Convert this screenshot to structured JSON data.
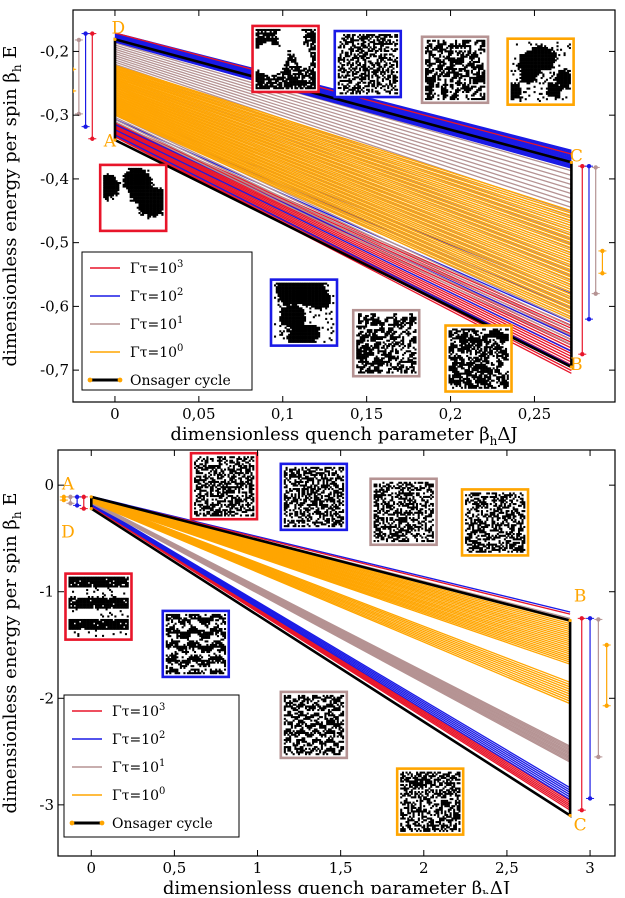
{
  "colors": {
    "red": "#e8152a",
    "blue": "#1a1ae6",
    "mauve": "#b59393",
    "orange": "#ffa500",
    "black": "#000000",
    "light_blue": "#8a8aff",
    "light_red": "#f08080"
  },
  "chart_data": [
    {
      "type": "line",
      "xlabel": "dimensionless quench parameter β",
      "xlabel_sub": "h",
      "xlabel_tail": "ΔJ",
      "ylabel": "dimensionless energy per spin β",
      "ylabel_sub": "h",
      "ylabel_tail": " E",
      "xlim": [
        -0.025,
        0.298
      ],
      "ylim": [
        -0.75,
        -0.135
      ],
      "x_ticks": [
        0,
        0.05,
        0.1,
        0.15,
        0.2,
        0.25
      ],
      "x_tick_labels": [
        "0",
        "0,05",
        "0,1",
        "0,15",
        "0,2",
        "0,25"
      ],
      "y_ticks": [
        -0.2,
        -0.3,
        -0.4,
        -0.5,
        -0.6,
        -0.7
      ],
      "y_tick_labels": [
        "-0,2",
        "-0,3",
        "-0,4",
        "-0,5",
        "-0,6",
        "-0,7"
      ],
      "x_end": 0.272,
      "corner_labels": [
        {
          "label": "A",
          "x": -0.003,
          "y": -0.342
        },
        {
          "label": "B",
          "x": 0.275,
          "y": -0.693
        },
        {
          "label": "C",
          "x": 0.275,
          "y": -0.366
        },
        {
          "label": "D",
          "x": 0.002,
          "y": -0.165
        }
      ],
      "bands": [
        {
          "series": "Γτ=10^3",
          "color": "red",
          "start": [
            -0.334,
            -0.312
          ],
          "end": [
            -0.705,
            -0.63
          ],
          "count": 18
        },
        {
          "series": "Γτ=10^2",
          "color": "blue",
          "start": [
            -0.331,
            -0.29
          ],
          "end": [
            -0.693,
            -0.58
          ],
          "count": 6
        },
        {
          "series": "Γτ=10^1",
          "color": "mauve",
          "start": [
            -0.31,
            -0.18
          ],
          "end": [
            -0.66,
            -0.38
          ],
          "count": 40
        },
        {
          "series": "Γτ=10^0",
          "color": "orange",
          "start": [
            -0.3,
            -0.222
          ],
          "end": [
            -0.62,
            -0.45
          ],
          "count": 45
        },
        {
          "series": "Γτ=10^2",
          "color": "blue",
          "start": [
            -0.185,
            -0.171
          ],
          "end": [
            -0.383,
            -0.355
          ],
          "count": 18
        },
        {
          "series": "Γτ=10^3",
          "color": "red",
          "start": [
            -0.171,
            -0.171
          ],
          "end": [
            -0.361,
            -0.361
          ],
          "count": 1
        }
      ],
      "cycle": [
        [
          0,
          -0.339
        ],
        [
          0.272,
          -0.695
        ],
        [
          0.272,
          -0.374
        ],
        [
          0,
          -0.181
        ],
        [
          0,
          -0.339
        ]
      ],
      "side_markers_left": [
        {
          "color": "red",
          "x": -0.0135,
          "y_top": -0.172,
          "y_bot": -0.337
        },
        {
          "color": "blue",
          "x": -0.0175,
          "y_top": -0.172,
          "y_bot": -0.318
        },
        {
          "color": "mauve",
          "x": -0.0215,
          "y_top": -0.182,
          "y_bot": -0.298
        },
        {
          "color": "orange",
          "x": -0.0255,
          "y_top": -0.228,
          "y_bot": -0.262
        }
      ],
      "side_markers_right": [
        {
          "color": "red",
          "x": 0.2785,
          "y_top": -0.38,
          "y_bot": -0.675
        },
        {
          "color": "blue",
          "x": 0.2825,
          "y_top": -0.38,
          "y_bot": -0.62
        },
        {
          "color": "mauve",
          "x": 0.2865,
          "y_top": -0.382,
          "y_bot": -0.58
        },
        {
          "color": "orange",
          "x": 0.2905,
          "y_top": -0.513,
          "y_bot": -0.548
        }
      ],
      "legend": [
        {
          "label": "Γτ=10",
          "sup": "3",
          "color": "red"
        },
        {
          "label": "Γτ=10",
          "sup": "2",
          "color": "blue"
        },
        {
          "label": "Γτ=10",
          "sup": "1",
          "color": "mauve"
        },
        {
          "label": "Γτ=10",
          "sup": "0",
          "color": "orange"
        },
        {
          "label": "Onsager cycle",
          "sup": "",
          "color": "black"
        }
      ],
      "snapshots": [
        {
          "color": "red",
          "x": 0.082,
          "y": -0.16,
          "w": 0.03,
          "h": 0.087,
          "style": "blobs-clean"
        },
        {
          "color": "blue",
          "x": 0.131,
          "y": -0.168,
          "w": 0.03,
          "h": 0.08,
          "style": "noise-fine"
        },
        {
          "color": "mauve",
          "x": 0.183,
          "y": -0.177,
          "w": 0.03,
          "h": 0.075,
          "style": "noise-coarse"
        },
        {
          "color": "orange",
          "x": 0.234,
          "y": -0.18,
          "w": 0.03,
          "h": 0.075,
          "style": "blobs-large"
        },
        {
          "color": "red",
          "x": -0.0088,
          "y": -0.378,
          "w": 0.03,
          "h": 0.079,
          "style": "blobs-sparse"
        },
        {
          "color": "blue",
          "x": 0.093,
          "y": -0.558,
          "w": 0.03,
          "h": 0.078,
          "style": "blobs-large"
        },
        {
          "color": "mauve",
          "x": 0.142,
          "y": -0.606,
          "w": 0.03,
          "h": 0.078,
          "style": "noise-coarse"
        },
        {
          "color": "orange",
          "x": 0.197,
          "y": -0.63,
          "w": 0.03,
          "h": 0.078,
          "style": "noise-clustered"
        }
      ]
    },
    {
      "type": "line",
      "xlabel": "dimensionless quench parameter β",
      "xlabel_sub": "h",
      "xlabel_tail": "ΔJ",
      "ylabel": "dimensionless energy per spin β",
      "ylabel_sub": "h",
      "ylabel_tail": " E",
      "xlim": [
        -0.2,
        3.15
      ],
      "ylim": [
        -3.48,
        0.33
      ],
      "x_ticks": [
        0,
        0.5,
        1,
        1.5,
        2,
        2.5,
        3
      ],
      "x_tick_labels": [
        "0",
        "0,5",
        "1",
        "1,5",
        "2",
        "2,5",
        "3"
      ],
      "y_ticks": [
        0,
        -1,
        -2,
        -3
      ],
      "y_tick_labels": [
        "0",
        "-1",
        "-2",
        "-3"
      ],
      "x_end": 2.88,
      "corner_labels": [
        {
          "label": "A",
          "x": -0.14,
          "y": 0.0
        },
        {
          "label": "D",
          "x": -0.14,
          "y": -0.45
        },
        {
          "label": "B",
          "x": 2.94,
          "y": -1.05
        },
        {
          "label": "C",
          "x": 2.94,
          "y": -3.2
        }
      ],
      "bands": [
        {
          "series": "Γτ=10^3",
          "color": "red",
          "start": [
            -0.2,
            -0.18
          ],
          "end": [
            -3.05,
            -2.96
          ],
          "count": 6
        },
        {
          "series": "Γτ=10^2",
          "color": "blue",
          "start": [
            -0.19,
            -0.165
          ],
          "end": [
            -2.95,
            -2.84
          ],
          "count": 6
        },
        {
          "series": "Γτ=10^1",
          "color": "mauve",
          "start": [
            -0.17,
            -0.15
          ],
          "end": [
            -2.6,
            -2.45
          ],
          "count": 12
        },
        {
          "series": "Γτ=10^0",
          "color": "orange",
          "start": [
            -0.16,
            -0.13
          ],
          "end": [
            -2.05,
            -1.85
          ],
          "count": 10
        },
        {
          "series": "Γτ=10^0",
          "color": "orange",
          "start": [
            -0.14,
            -0.11
          ],
          "end": [
            -1.68,
            -1.28
          ],
          "count": 22
        },
        {
          "series": "Γτ=10^1",
          "color": "mauve",
          "start": [
            -0.11,
            -0.11
          ],
          "end": [
            -1.25,
            -1.25
          ],
          "count": 1
        },
        {
          "series": "Γτ=10^2",
          "color": "blue",
          "start": [
            -0.105,
            -0.105
          ],
          "end": [
            -1.19,
            -1.19
          ],
          "count": 1
        },
        {
          "series": "Γτ=10^3",
          "color": "red",
          "start": [
            -0.11,
            -0.11
          ],
          "end": [
            -1.21,
            -1.21
          ],
          "count": 1
        }
      ],
      "cycle": [
        [
          0,
          -0.11
        ],
        [
          2.88,
          -1.27
        ],
        [
          2.88,
          -3.1
        ],
        [
          0,
          -0.22
        ],
        [
          0,
          -0.11
        ]
      ],
      "side_markers_left": [
        {
          "color": "red",
          "x": -0.045,
          "y_top": -0.11,
          "y_bot": -0.22
        },
        {
          "color": "blue",
          "x": -0.085,
          "y_top": -0.11,
          "y_bot": -0.19
        },
        {
          "color": "mauve",
          "x": -0.125,
          "y_top": -0.11,
          "y_bot": -0.17
        },
        {
          "color": "orange",
          "x": -0.165,
          "y_top": -0.11,
          "y_bot": -0.14
        }
      ],
      "side_markers_right": [
        {
          "color": "red",
          "x": 2.95,
          "y_top": -1.25,
          "y_bot": -3.05
        },
        {
          "color": "blue",
          "x": 3.0,
          "y_top": -1.25,
          "y_bot": -2.94
        },
        {
          "color": "mauve",
          "x": 3.05,
          "y_top": -1.26,
          "y_bot": -2.55
        },
        {
          "color": "orange",
          "x": 3.1,
          "y_top": -1.5,
          "y_bot": -2.07
        }
      ],
      "legend": [
        {
          "label": "Γτ=10",
          "sup": "3",
          "color": "red"
        },
        {
          "label": "Γτ=10",
          "sup": "2",
          "color": "blue"
        },
        {
          "label": "Γτ=10",
          "sup": "1",
          "color": "mauve"
        },
        {
          "label": "Γτ=10",
          "sup": "0",
          "color": "orange"
        },
        {
          "label": "Onsager cycle",
          "sup": "",
          "color": "black"
        }
      ],
      "snapshots": [
        {
          "color": "red",
          "x": 0.6,
          "y": 0.3,
          "w": 0.44,
          "h": 0.6,
          "style": "noise-fine"
        },
        {
          "color": "blue",
          "x": 1.14,
          "y": 0.2,
          "w": 0.44,
          "h": 0.6,
          "style": "noise-fine"
        },
        {
          "color": "mauve",
          "x": 1.68,
          "y": 0.06,
          "w": 0.44,
          "h": 0.6,
          "style": "noise-fine"
        },
        {
          "color": "orange",
          "x": 2.23,
          "y": -0.04,
          "w": 0.44,
          "h": 0.6,
          "style": "noise-fine"
        },
        {
          "color": "red",
          "x": -0.155,
          "y": -0.83,
          "w": 0.44,
          "h": 0.6,
          "style": "stripes-bold"
        },
        {
          "color": "blue",
          "x": 0.43,
          "y": -1.18,
          "w": 0.44,
          "h": 0.6,
          "style": "stripes-broken"
        },
        {
          "color": "mauve",
          "x": 1.14,
          "y": -1.94,
          "w": 0.44,
          "h": 0.6,
          "style": "stripes-fine"
        },
        {
          "color": "orange",
          "x": 1.84,
          "y": -2.66,
          "w": 0.44,
          "h": 0.6,
          "style": "noise-fine"
        }
      ]
    }
  ]
}
